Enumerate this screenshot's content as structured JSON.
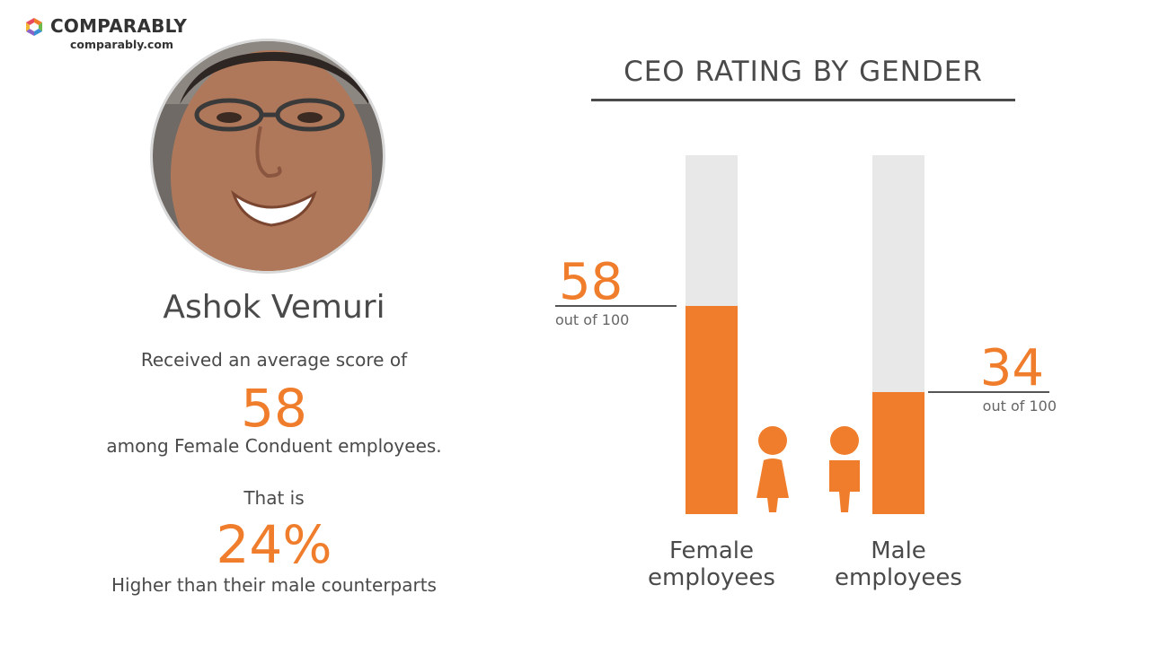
{
  "brand": {
    "name": "COMPARABLY",
    "url": "comparably.com",
    "colors": [
      "#f07d2b",
      "#6dbb4a",
      "#3b8fd4",
      "#8a63c6"
    ]
  },
  "profile": {
    "name": "Ashok Vemuri",
    "photo_icon": "ceo-portrait"
  },
  "summary": {
    "line1": "Received an average score of",
    "score": "58",
    "line2": "among Female Conduent employees.",
    "line3": "That is",
    "percent": "24%",
    "line4": "Higher than their male counterparts"
  },
  "colors": {
    "accent": "#f07d2b",
    "track": "#e8e8e8",
    "text": "#4a4a4a"
  },
  "chart_data": {
    "type": "bar",
    "title": "CEO RATING BY GENDER",
    "categories": [
      "Female employees",
      "Male employees"
    ],
    "category_lines": [
      [
        "Female",
        "employees"
      ],
      [
        "Male",
        "employees"
      ]
    ],
    "values": [
      58,
      34
    ],
    "value_suffix": "out of 100",
    "ylim": [
      0,
      100
    ],
    "icons": [
      "female-person-icon",
      "male-person-icon"
    ]
  }
}
